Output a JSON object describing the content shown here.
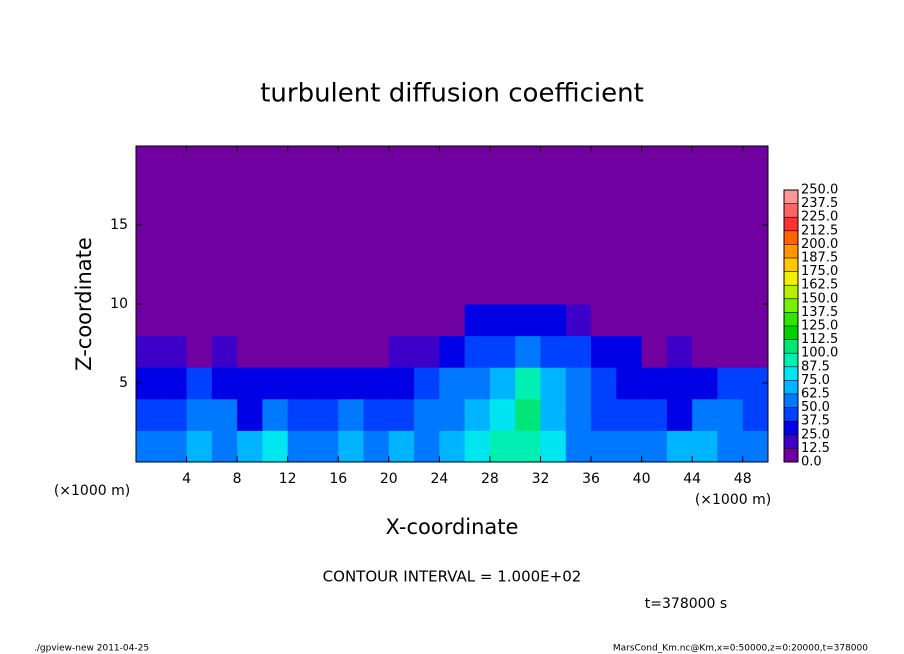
{
  "chart_data": {
    "type": "heatmap",
    "title": "turbulent diffusion coefficient",
    "x_label": "X-coordinate",
    "y_label": "Z-coordinate",
    "x_unit": "(×1000 m)",
    "y_unit": "(×1000 m)",
    "note": "CONTOUR INTERVAL = 1.000E+02",
    "time_label": "t=378000 s",
    "footer_left": "./gpview-new  2011-04-25",
    "footer_right": "MarsCond_Km.nc@Km,x=0:50000,z=0:20000,t=378000",
    "xlim": [
      0,
      50
    ],
    "ylim": [
      0,
      20
    ],
    "xticks": [
      4,
      8,
      12,
      16,
      20,
      24,
      28,
      32,
      36,
      40,
      44,
      48
    ],
    "yticks": [
      5,
      10,
      15
    ],
    "x": [
      1,
      3,
      5,
      7,
      9,
      11,
      13,
      15,
      17,
      19,
      21,
      23,
      25,
      27,
      29,
      31,
      33,
      35,
      37,
      39,
      41,
      43,
      45,
      47,
      49
    ],
    "y": [
      1,
      3,
      5,
      7,
      9,
      11,
      13,
      15,
      17,
      19
    ],
    "values": [
      [
        60,
        55,
        70,
        50,
        65,
        75,
        60,
        55,
        70,
        60,
        65,
        60,
        70,
        80,
        90,
        95,
        85,
        60,
        55,
        60,
        50,
        65,
        70,
        60,
        55
      ],
      [
        45,
        40,
        55,
        50,
        35,
        60,
        45,
        40,
        50,
        45,
        40,
        55,
        60,
        70,
        75,
        100,
        70,
        55,
        45,
        40,
        45,
        35,
        50,
        55,
        45
      ],
      [
        35,
        30,
        40,
        25,
        30,
        35,
        30,
        25,
        35,
        30,
        35,
        40,
        55,
        60,
        70,
        90,
        65,
        50,
        40,
        35,
        30,
        25,
        35,
        45,
        40
      ],
      [
        15,
        20,
        10,
        15,
        10,
        12,
        10,
        8,
        10,
        12,
        15,
        20,
        35,
        40,
        45,
        50,
        45,
        40,
        30,
        25,
        10,
        15,
        12,
        10,
        8
      ],
      [
        0,
        0,
        0,
        0,
        0,
        0,
        0,
        0,
        0,
        0,
        0,
        0,
        10,
        25,
        30,
        30,
        25,
        20,
        10,
        0,
        0,
        0,
        0,
        0,
        0
      ],
      [
        0,
        0,
        0,
        0,
        0,
        0,
        0,
        0,
        0,
        0,
        0,
        0,
        0,
        0,
        0,
        0,
        0,
        0,
        0,
        0,
        0,
        0,
        0,
        0,
        0
      ],
      [
        0,
        0,
        0,
        0,
        0,
        0,
        0,
        0,
        0,
        0,
        0,
        0,
        0,
        0,
        0,
        0,
        0,
        0,
        0,
        0,
        0,
        0,
        0,
        0,
        0
      ],
      [
        0,
        0,
        0,
        0,
        0,
        0,
        0,
        0,
        0,
        0,
        0,
        0,
        0,
        0,
        0,
        0,
        0,
        0,
        0,
        0,
        0,
        0,
        0,
        0,
        0
      ],
      [
        0,
        0,
        0,
        0,
        0,
        0,
        0,
        0,
        0,
        0,
        0,
        0,
        0,
        0,
        0,
        0,
        0,
        0,
        0,
        0,
        0,
        0,
        0,
        0,
        0
      ],
      [
        0,
        0,
        0,
        0,
        0,
        0,
        0,
        0,
        0,
        0,
        0,
        0,
        0,
        0,
        0,
        0,
        0,
        0,
        0,
        0,
        0,
        0,
        0,
        0,
        0
      ]
    ],
    "levels": [
      {
        "value": 0,
        "label": "0.0"
      },
      {
        "value": 12.5,
        "label": "12.5"
      },
      {
        "value": 25,
        "label": "25.0"
      },
      {
        "value": 37.5,
        "label": "37.5"
      },
      {
        "value": 50,
        "label": "50.0"
      },
      {
        "value": 62.5,
        "label": "62.5"
      },
      {
        "value": 75,
        "label": "75.0"
      },
      {
        "value": 87.5,
        "label": "87.5"
      },
      {
        "value": 100,
        "label": "100.0"
      },
      {
        "value": 112.5,
        "label": "112.5"
      },
      {
        "value": 125,
        "label": "125.0"
      },
      {
        "value": 137.5,
        "label": "137.5"
      },
      {
        "value": 150,
        "label": "150.0"
      },
      {
        "value": 162.5,
        "label": "162.5"
      },
      {
        "value": 175,
        "label": "175.0"
      },
      {
        "value": 187.5,
        "label": "187.5"
      },
      {
        "value": 200,
        "label": "200.0"
      },
      {
        "value": 212.5,
        "label": "212.5"
      },
      {
        "value": 225,
        "label": "225.0"
      },
      {
        "value": 237.5,
        "label": "237.5"
      },
      {
        "value": 250,
        "label": "250.0"
      }
    ],
    "colors": [
      "#7000a0",
      "#3c00c8",
      "#0000e6",
      "#0040ff",
      "#0078ff",
      "#00b4ff",
      "#00e6f0",
      "#00f0b4",
      "#00e678",
      "#00d200",
      "#32e600",
      "#78f000",
      "#b4f000",
      "#f0f000",
      "#ffc800",
      "#ff9600",
      "#ff6400",
      "#ff3232",
      "#ff6464",
      "#ff9696"
    ]
  }
}
